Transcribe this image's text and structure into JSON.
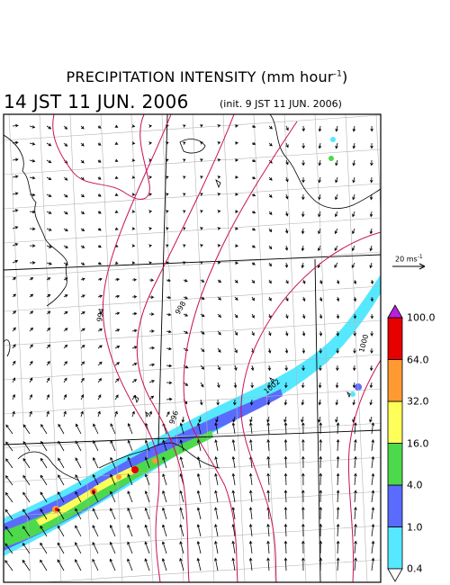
{
  "title": {
    "text": "PRECIPITATION INTENSITY (mm hour",
    "unit_exp": "-1",
    "close": ")"
  },
  "valid_time": "14 JST 11 JUN. 2006",
  "init_time": "(init. 9 JST 11 JUN. 2006)",
  "wind_reference": {
    "label": "20 ms",
    "exp": "-1"
  },
  "isobar_labels": [
    "994",
    "996",
    "998",
    "1000",
    "1002"
  ],
  "colorbar": {
    "levels": [
      "0.4",
      "1.0",
      "4.0",
      "16.0",
      "32.0",
      "64.0",
      "100.0"
    ],
    "colors": [
      "#55e8ff",
      "#5a6bff",
      "#4cd94c",
      "#ffff5a",
      "#ff9a33",
      "#e60000",
      "#b820e0"
    ],
    "under_color": "#ffffff",
    "over_color": "#b820e0"
  },
  "map_colors": {
    "isobar": "#c8105a",
    "grid": "#b4b4b4",
    "coast": "#000000",
    "arrow": "#000000"
  }
}
